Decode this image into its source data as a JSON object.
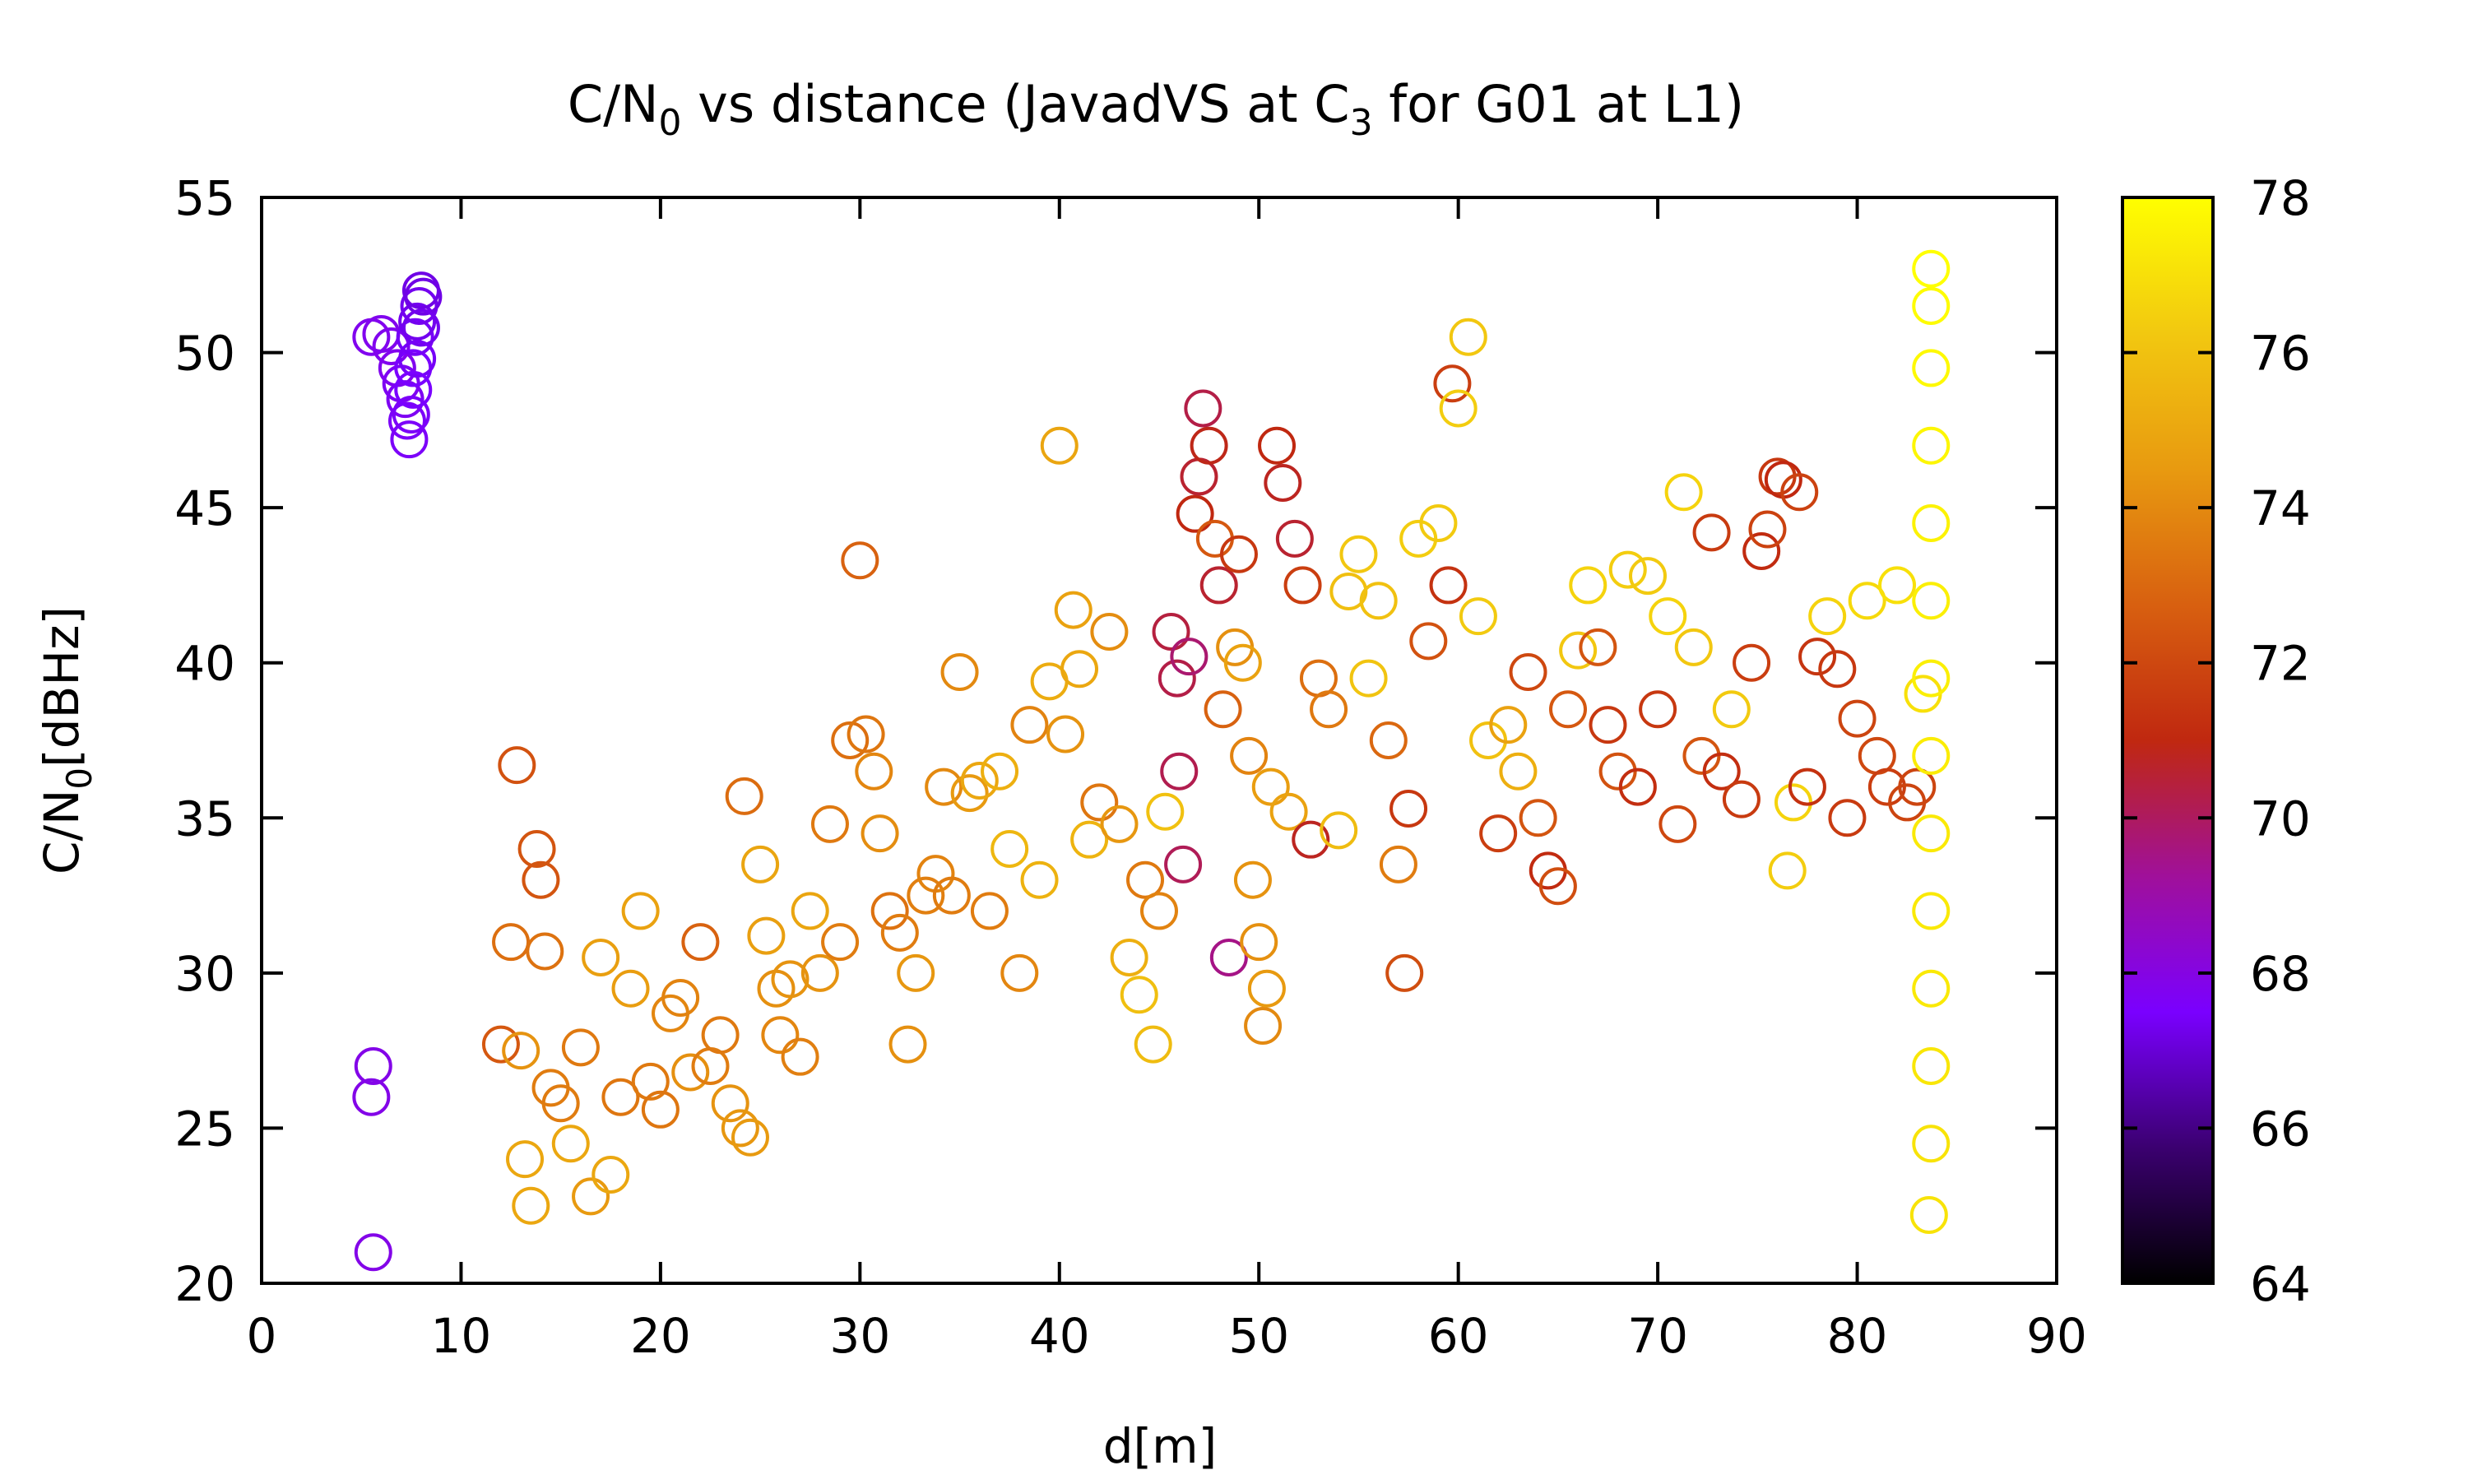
{
  "chart_data": {
    "type": "scatter",
    "title": {
      "prefix": "C/N",
      "subscript": "0",
      "middle": " vs distance (JavadVS at C",
      "subscript2": "3",
      "suffix": " for G01 at L1)"
    },
    "xlabel": "d[m]",
    "ylabel": {
      "prefix": "C/N",
      "subscript": "0",
      "suffix": "[dBHz]"
    },
    "xlim": [
      0,
      90
    ],
    "ylim": [
      20,
      55
    ],
    "x_ticks": [
      "0",
      "10",
      "20",
      "30",
      "40",
      "50",
      "60",
      "70",
      "80",
      "90"
    ],
    "y_ticks": [
      "20",
      "25",
      "30",
      "35",
      "40",
      "45",
      "50",
      "55"
    ],
    "colorbar": {
      "range": [
        64,
        78
      ],
      "ticks": [
        "64",
        "66",
        "68",
        "70",
        "72",
        "74",
        "76",
        "78"
      ],
      "colormap": "gnuplot-pm3d",
      "gradient_stops": [
        "#000000",
        "#3b0070",
        "#7a00ff",
        "#a0109a",
        "#c02810",
        "#d86010",
        "#e89a10",
        "#f2c810",
        "#ffff00"
      ]
    },
    "grid": false,
    "marker": "open-circle",
    "series": [
      {
        "points": [
          [
            5.5,
            50.5,
            67.8
          ],
          [
            6.0,
            50.6,
            67.8
          ],
          [
            6.5,
            50.2,
            67.8
          ],
          [
            6.8,
            49.5,
            67.8
          ],
          [
            7.0,
            49.0,
            67.7
          ],
          [
            7.2,
            48.5,
            67.7
          ],
          [
            7.3,
            47.8,
            67.6
          ],
          [
            7.4,
            47.2,
            67.6
          ],
          [
            7.5,
            48.0,
            67.6
          ],
          [
            7.6,
            49.5,
            67.5
          ],
          [
            7.7,
            50.5,
            67.4
          ],
          [
            7.8,
            51.0,
            67.3
          ],
          [
            7.9,
            51.5,
            67.3
          ],
          [
            8.0,
            52.0,
            67.2
          ],
          [
            8.1,
            51.8,
            67.2
          ],
          [
            8.0,
            50.8,
            67.3
          ],
          [
            7.8,
            49.8,
            67.4
          ],
          [
            7.6,
            48.8,
            67.5
          ],
          [
            5.6,
            27.0,
            67.9
          ],
          [
            5.5,
            26.0,
            67.9
          ],
          [
            5.6,
            21.0,
            67.9
          ],
          [
            12.0,
            27.7,
            72.5
          ],
          [
            12.5,
            31.0,
            73.2
          ],
          [
            12.8,
            36.7,
            72.3
          ],
          [
            13.0,
            27.5,
            74.3
          ],
          [
            13.2,
            24.0,
            75.0
          ],
          [
            13.5,
            22.5,
            75.0
          ],
          [
            13.8,
            34.0,
            72.4
          ],
          [
            14.0,
            33.0,
            72.4
          ],
          [
            14.2,
            30.7,
            73.3
          ],
          [
            14.5,
            26.3,
            73.6
          ],
          [
            15.0,
            25.8,
            73.6
          ],
          [
            15.5,
            24.5,
            75.0
          ],
          [
            16.0,
            27.6,
            73.5
          ],
          [
            16.5,
            22.8,
            74.5
          ],
          [
            17.0,
            30.5,
            74.7
          ],
          [
            17.5,
            23.5,
            75.0
          ],
          [
            18.0,
            26.0,
            73.4
          ],
          [
            18.5,
            29.5,
            74.6
          ],
          [
            19.0,
            32.0,
            74.8
          ],
          [
            19.5,
            26.5,
            73.5
          ],
          [
            20.0,
            25.6,
            73.4
          ],
          [
            20.5,
            28.7,
            73.9
          ],
          [
            21.0,
            29.2,
            73.8
          ],
          [
            21.5,
            26.8,
            74.2
          ],
          [
            22.0,
            31.0,
            72.8
          ],
          [
            22.5,
            27.0,
            73.6
          ],
          [
            23.0,
            28.0,
            73.5
          ],
          [
            23.5,
            25.8,
            74.3
          ],
          [
            24.0,
            25.0,
            74.4
          ],
          [
            24.2,
            35.7,
            73.1
          ],
          [
            24.5,
            24.7,
            74.5
          ],
          [
            25.0,
            33.5,
            74.9
          ],
          [
            25.3,
            31.2,
            74.7
          ],
          [
            25.8,
            29.5,
            74.2
          ],
          [
            26.0,
            28.0,
            73.9
          ],
          [
            26.5,
            29.8,
            74.3
          ],
          [
            27.0,
            27.3,
            73.7
          ],
          [
            27.5,
            32.0,
            74.9
          ],
          [
            28.0,
            30.0,
            74.3
          ],
          [
            28.5,
            34.8,
            73.5
          ],
          [
            29.0,
            31.0,
            73.6
          ],
          [
            29.5,
            37.5,
            73.2
          ],
          [
            30.0,
            43.3,
            72.8
          ],
          [
            30.3,
            37.7,
            73.4
          ],
          [
            30.7,
            36.5,
            73.9
          ],
          [
            31.0,
            34.5,
            74.1
          ],
          [
            31.5,
            32.0,
            73.3
          ],
          [
            32.0,
            31.3,
            73.6
          ],
          [
            32.4,
            27.7,
            74.2
          ],
          [
            32.8,
            30.0,
            74.4
          ],
          [
            33.3,
            32.5,
            73.7
          ],
          [
            33.8,
            33.2,
            73.8
          ],
          [
            34.2,
            36.0,
            74.0
          ],
          [
            34.6,
            32.5,
            73.6
          ],
          [
            35.0,
            39.7,
            74.0
          ],
          [
            35.5,
            35.8,
            74.5
          ],
          [
            36.0,
            36.2,
            75.0
          ],
          [
            36.5,
            32.0,
            73.6
          ],
          [
            37.0,
            36.5,
            75.3
          ],
          [
            37.5,
            34.0,
            75.6
          ],
          [
            38.0,
            30.0,
            73.9
          ],
          [
            38.5,
            38.0,
            73.8
          ],
          [
            39.0,
            33.0,
            75.4
          ],
          [
            39.5,
            39.4,
            75.2
          ],
          [
            40.0,
            47.0,
            74.9
          ],
          [
            40.3,
            37.7,
            74.3
          ],
          [
            40.7,
            41.7,
            74.8
          ],
          [
            41.0,
            39.8,
            75.0
          ],
          [
            41.5,
            34.3,
            75.5
          ],
          [
            42.0,
            35.5,
            73.4
          ],
          [
            42.5,
            41.0,
            74.1
          ],
          [
            43.0,
            34.8,
            74.4
          ],
          [
            43.5,
            30.5,
            75.3
          ],
          [
            44.0,
            29.3,
            75.9
          ],
          [
            44.3,
            33.0,
            73.5
          ],
          [
            44.7,
            27.7,
            75.8
          ],
          [
            45.0,
            32.0,
            73.8
          ],
          [
            45.3,
            35.2,
            76.0
          ],
          [
            45.6,
            41.0,
            70.4
          ],
          [
            45.9,
            39.5,
            70.3
          ],
          [
            46.0,
            36.5,
            70.2
          ],
          [
            46.2,
            33.5,
            70.1
          ],
          [
            46.5,
            40.2,
            69.8
          ],
          [
            46.8,
            44.8,
            71.0
          ],
          [
            47.0,
            46.0,
            70.6
          ],
          [
            47.2,
            48.2,
            70.3
          ],
          [
            47.5,
            47.0,
            70.9
          ],
          [
            47.8,
            44.0,
            72.5
          ],
          [
            48.0,
            42.5,
            70.6
          ],
          [
            48.2,
            38.5,
            72.8
          ],
          [
            48.5,
            30.5,
            69.5
          ],
          [
            48.8,
            40.5,
            74.2
          ],
          [
            49.0,
            43.5,
            71.5
          ],
          [
            49.2,
            40.0,
            74.8
          ],
          [
            49.5,
            37.0,
            73.8
          ],
          [
            49.7,
            33.0,
            74.3
          ],
          [
            50.0,
            31.0,
            74.2
          ],
          [
            50.2,
            28.3,
            74.0
          ],
          [
            50.4,
            29.5,
            74.5
          ],
          [
            50.6,
            36.0,
            74.6
          ],
          [
            50.9,
            47.0,
            71.0
          ],
          [
            51.2,
            45.8,
            70.8
          ],
          [
            51.5,
            35.2,
            74.8
          ],
          [
            51.8,
            44.0,
            70.6
          ],
          [
            52.2,
            42.5,
            71.7
          ],
          [
            52.6,
            34.3,
            70.8
          ],
          [
            53.0,
            39.5,
            73.2
          ],
          [
            53.5,
            38.5,
            73.5
          ],
          [
            54.0,
            34.6,
            75.8
          ],
          [
            54.5,
            42.3,
            75.9
          ],
          [
            55.0,
            43.5,
            76.2
          ],
          [
            55.5,
            39.5,
            76.1
          ],
          [
            56.0,
            42.0,
            76.0
          ],
          [
            56.5,
            37.5,
            73.0
          ],
          [
            57.0,
            33.5,
            73.6
          ],
          [
            57.3,
            30.0,
            72.2
          ],
          [
            57.5,
            35.3,
            71.5
          ],
          [
            58.0,
            44.0,
            76.4
          ],
          [
            58.5,
            40.7,
            72.3
          ],
          [
            59.0,
            44.5,
            76.3
          ],
          [
            59.5,
            42.5,
            71.3
          ],
          [
            59.7,
            49.0,
            71.7
          ],
          [
            60.0,
            48.2,
            76.4
          ],
          [
            60.5,
            50.5,
            76.2
          ],
          [
            61.0,
            41.5,
            76.3
          ],
          [
            61.5,
            37.5,
            76.0
          ],
          [
            62.0,
            34.5,
            71.7
          ],
          [
            62.5,
            38.0,
            74.8
          ],
          [
            63.0,
            36.5,
            75.3
          ],
          [
            63.5,
            39.7,
            72.0
          ],
          [
            64.0,
            35.0,
            72.4
          ],
          [
            64.5,
            33.3,
            71.1
          ],
          [
            65.0,
            32.8,
            72.2
          ],
          [
            65.5,
            38.5,
            72.5
          ],
          [
            66.0,
            40.4,
            76.2
          ],
          [
            66.5,
            42.5,
            76.6
          ],
          [
            67.0,
            40.5,
            72.4
          ],
          [
            67.5,
            38.0,
            71.5
          ],
          [
            68.0,
            36.5,
            72.3
          ],
          [
            68.5,
            43.0,
            76.4
          ],
          [
            69.0,
            36.0,
            71.2
          ],
          [
            69.5,
            42.8,
            76.3
          ],
          [
            70.0,
            38.5,
            71.5
          ],
          [
            70.5,
            41.5,
            76.6
          ],
          [
            71.0,
            34.8,
            72.0
          ],
          [
            71.3,
            45.5,
            76.6
          ],
          [
            71.8,
            40.5,
            76.2
          ],
          [
            72.2,
            37.0,
            72.4
          ],
          [
            72.7,
            44.2,
            71.6
          ],
          [
            73.2,
            36.5,
            71.2
          ],
          [
            73.7,
            38.5,
            76.3
          ],
          [
            74.2,
            35.6,
            71.6
          ],
          [
            74.7,
            40.0,
            71.7
          ],
          [
            75.2,
            43.6,
            71.1
          ],
          [
            75.5,
            44.3,
            71.8
          ],
          [
            76.0,
            46.0,
            71.5
          ],
          [
            76.3,
            45.9,
            71.0
          ],
          [
            76.5,
            33.3,
            76.4
          ],
          [
            76.8,
            35.5,
            76.6
          ],
          [
            77.1,
            45.5,
            71.8
          ],
          [
            77.5,
            36.0,
            71.3
          ],
          [
            78.0,
            40.2,
            71.4
          ],
          [
            78.5,
            41.5,
            76.6
          ],
          [
            79.0,
            39.8,
            71.5
          ],
          [
            79.5,
            35.0,
            71.6
          ],
          [
            80.0,
            38.2,
            71.9
          ],
          [
            80.5,
            42.0,
            76.8
          ],
          [
            81.0,
            37.0,
            72.0
          ],
          [
            81.5,
            36.0,
            71.7
          ],
          [
            82.0,
            42.5,
            77.0
          ],
          [
            82.5,
            35.5,
            71.9
          ],
          [
            83.0,
            36.0,
            71.9
          ],
          [
            83.3,
            39.0,
            77.0
          ],
          [
            83.6,
            22.2,
            77.1
          ],
          [
            83.7,
            24.5,
            77.1
          ],
          [
            83.7,
            27.0,
            77.2
          ],
          [
            83.7,
            29.5,
            77.3
          ],
          [
            83.7,
            32.0,
            77.3
          ],
          [
            83.7,
            34.5,
            77.3
          ],
          [
            83.7,
            37.0,
            77.4
          ],
          [
            83.7,
            39.5,
            77.5
          ],
          [
            83.7,
            42.0,
            77.5
          ],
          [
            83.7,
            44.5,
            77.6
          ],
          [
            83.7,
            47.0,
            77.7
          ],
          [
            83.7,
            49.5,
            77.8
          ],
          [
            83.7,
            51.5,
            77.9
          ],
          [
            83.7,
            52.7,
            78.0
          ]
        ]
      }
    ]
  }
}
